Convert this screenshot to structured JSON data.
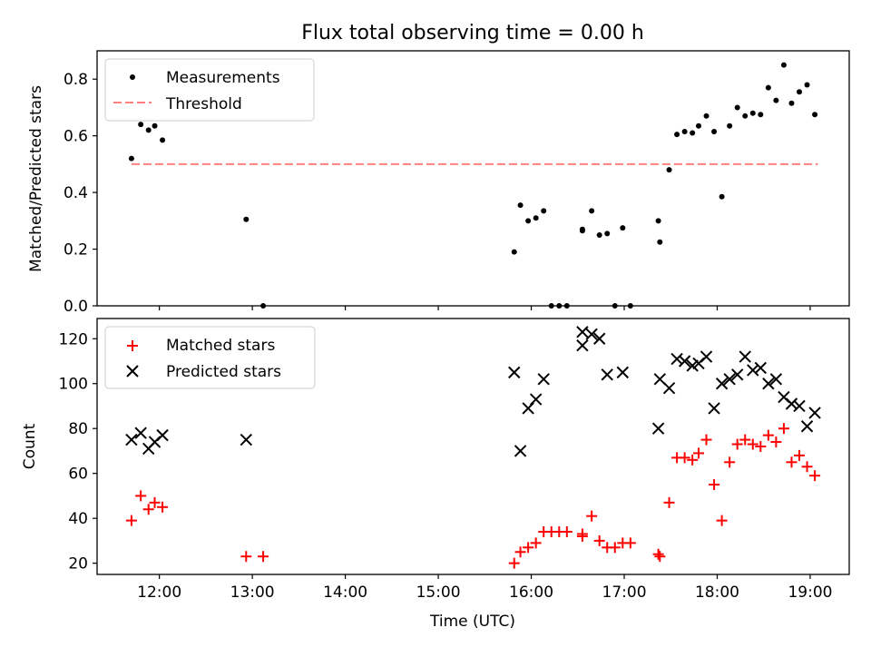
{
  "chart_data": {
    "title": "Flux total observing time = 0.00 h",
    "xlabel": "Time (UTC)",
    "x_ticks": [
      "12:00",
      "13:00",
      "14:00",
      "15:00",
      "16:00",
      "17:00",
      "18:00",
      "19:00"
    ],
    "xlim_hours": [
      11.33,
      19.42
    ],
    "panels": [
      {
        "type": "scatter",
        "ylabel": "Matched/Predicted stars",
        "ylim": [
          0,
          0.9
        ],
        "y_ticks": [
          "0.0",
          "0.2",
          "0.4",
          "0.6",
          "0.8"
        ],
        "legend": {
          "placement": "upper-left",
          "entries": [
            "Measurements",
            "Threshold"
          ]
        },
        "threshold": {
          "name": "Threshold",
          "value": 0.5,
          "x_range": [
            "11:42",
            "19:05"
          ],
          "color": "#ff7f7f"
        },
        "series": [
          {
            "name": "Measurements",
            "color": "#000000",
            "points": [
              [
                "11:42",
                0.52
              ],
              [
                "11:48",
                0.64
              ],
              [
                "11:53",
                0.62
              ],
              [
                "11:57",
                0.635
              ],
              [
                "12:02",
                0.585
              ],
              [
                "12:56",
                0.305
              ],
              [
                "13:07",
                0.0
              ],
              [
                "15:49",
                0.19
              ],
              [
                "15:53",
                0.355
              ],
              [
                "15:58",
                0.3
              ],
              [
                "16:03",
                0.31
              ],
              [
                "16:08",
                0.335
              ],
              [
                "16:13",
                0.0
              ],
              [
                "16:18",
                0.0
              ],
              [
                "16:23",
                0.0
              ],
              [
                "16:33",
                0.27
              ],
              [
                "16:33",
                0.265
              ],
              [
                "16:39",
                0.335
              ],
              [
                "16:44",
                0.25
              ],
              [
                "16:49",
                0.255
              ],
              [
                "16:54",
                0.0
              ],
              [
                "16:59",
                0.275
              ],
              [
                "17:04",
                0.0
              ],
              [
                "17:22",
                0.3
              ],
              [
                "17:23",
                0.225
              ],
              [
                "17:29",
                0.48
              ],
              [
                "17:34",
                0.605
              ],
              [
                "17:39",
                0.615
              ],
              [
                "17:44",
                0.61
              ],
              [
                "17:48",
                0.635
              ],
              [
                "17:53",
                0.67
              ],
              [
                "17:58",
                0.615
              ],
              [
                "18:03",
                0.385
              ],
              [
                "18:08",
                0.635
              ],
              [
                "18:13",
                0.7
              ],
              [
                "18:18",
                0.67
              ],
              [
                "18:23",
                0.68
              ],
              [
                "18:28",
                0.675
              ],
              [
                "18:33",
                0.77
              ],
              [
                "18:38",
                0.725
              ],
              [
                "18:43",
                0.85
              ],
              [
                "18:48",
                0.715
              ],
              [
                "18:53",
                0.755
              ],
              [
                "18:58",
                0.78
              ],
              [
                "19:03",
                0.675
              ]
            ]
          }
        ]
      },
      {
        "type": "scatter",
        "ylabel": "Count",
        "ylim": [
          15,
          129
        ],
        "y_ticks": [
          "20",
          "40",
          "60",
          "80",
          "100",
          "120"
        ],
        "legend": {
          "placement": "upper-left",
          "entries": [
            "Matched stars",
            "Predicted stars"
          ]
        },
        "series": [
          {
            "name": "Matched stars",
            "marker": "+",
            "color": "#ff0000",
            "points": [
              [
                "11:42",
                39
              ],
              [
                "11:48",
                50
              ],
              [
                "11:53",
                44
              ],
              [
                "11:57",
                47
              ],
              [
                "12:02",
                45
              ],
              [
                "12:56",
                23
              ],
              [
                "13:07",
                23
              ],
              [
                "15:49",
                20
              ],
              [
                "15:53",
                25
              ],
              [
                "15:58",
                27
              ],
              [
                "16:03",
                29
              ],
              [
                "16:08",
                34
              ],
              [
                "16:13",
                34
              ],
              [
                "16:18",
                34
              ],
              [
                "16:23",
                34
              ],
              [
                "16:33",
                33
              ],
              [
                "16:33",
                32
              ],
              [
                "16:39",
                41
              ],
              [
                "16:44",
                30
              ],
              [
                "16:49",
                27
              ],
              [
                "16:54",
                27
              ],
              [
                "16:59",
                29
              ],
              [
                "17:04",
                29
              ],
              [
                "17:22",
                24
              ],
              [
                "17:23",
                23
              ],
              [
                "17:29",
                47
              ],
              [
                "17:34",
                67
              ],
              [
                "17:39",
                67
              ],
              [
                "17:44",
                66
              ],
              [
                "17:48",
                69
              ],
              [
                "17:53",
                75
              ],
              [
                "17:58",
                55
              ],
              [
                "18:03",
                39
              ],
              [
                "18:08",
                65
              ],
              [
                "18:13",
                73
              ],
              [
                "18:18",
                75
              ],
              [
                "18:23",
                73
              ],
              [
                "18:28",
                72
              ],
              [
                "18:33",
                77
              ],
              [
                "18:38",
                74
              ],
              [
                "18:43",
                80
              ],
              [
                "18:48",
                65
              ],
              [
                "18:53",
                68
              ],
              [
                "18:58",
                63
              ],
              [
                "19:03",
                59
              ]
            ]
          },
          {
            "name": "Predicted stars",
            "marker": "x",
            "color": "#000000",
            "points": [
              [
                "11:42",
                75
              ],
              [
                "11:48",
                78
              ],
              [
                "11:53",
                71
              ],
              [
                "11:57",
                74
              ],
              [
                "12:02",
                77
              ],
              [
                "12:56",
                75
              ],
              [
                "15:49",
                105
              ],
              [
                "15:53",
                70
              ],
              [
                "15:58",
                89
              ],
              [
                "16:03",
                93
              ],
              [
                "16:08",
                102
              ],
              [
                "16:33",
                117
              ],
              [
                "16:33",
                123
              ],
              [
                "16:39",
                122
              ],
              [
                "16:44",
                120
              ],
              [
                "16:49",
                104
              ],
              [
                "16:59",
                105
              ],
              [
                "17:22",
                80
              ],
              [
                "17:23",
                102
              ],
              [
                "17:29",
                98
              ],
              [
                "17:34",
                111
              ],
              [
                "17:39",
                110
              ],
              [
                "17:44",
                108
              ],
              [
                "17:48",
                109
              ],
              [
                "17:53",
                112
              ],
              [
                "17:58",
                89
              ],
              [
                "18:03",
                100
              ],
              [
                "18:08",
                102
              ],
              [
                "18:13",
                104
              ],
              [
                "18:18",
                112
              ],
              [
                "18:23",
                106
              ],
              [
                "18:28",
                107
              ],
              [
                "18:33",
                100
              ],
              [
                "18:38",
                102
              ],
              [
                "18:43",
                94
              ],
              [
                "18:48",
                91
              ],
              [
                "18:53",
                90
              ],
              [
                "18:58",
                81
              ],
              [
                "19:03",
                87
              ]
            ]
          }
        ]
      }
    ]
  }
}
